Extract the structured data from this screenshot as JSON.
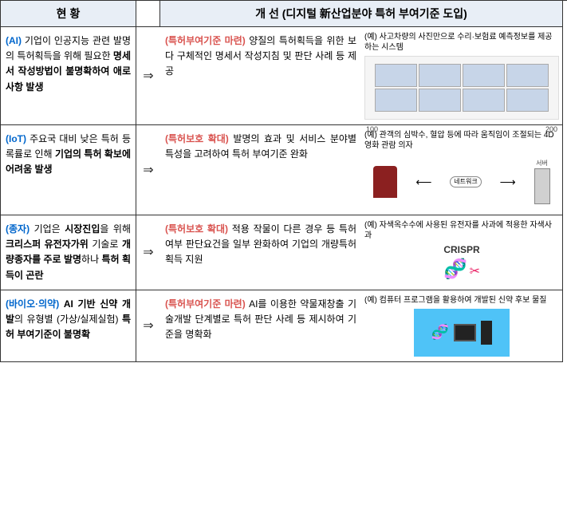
{
  "header": {
    "current": "현 황",
    "improve": "개 선 (디지털 新산업분야 특허 부여기준 도입)"
  },
  "arrow": "⇒",
  "rows": [
    {
      "tag": "(AI)",
      "left_parts": [
        "기업이 인공지능 관련 발명의 특허획득을 위해 필요한 ",
        "명세서 작성방법이 불명확하여 애로사항 발생"
      ],
      "improve_tag": "(특허부여기준 마련)",
      "improve_text": "양질의 특허획득을 위한 보다 구체적인 명세서 작성지침 및 판단 사례 등 제공",
      "ex_head": "(예) 사고차량의 사진만으로 수리·보험료 예측정보를 제공하는 시스템"
    },
    {
      "tag": "(IoT)",
      "left_parts": [
        "주요국 대비 낮은 특허 등록률로 인해 ",
        "기업의 특허 확보에 어려움 발생"
      ],
      "improve_tag": "(특허보호 확대)",
      "improve_text": "발명의 효과 및 서비스 분야별 특성을 고려하여 특허 부여기준 완화",
      "ex_head": "(예) 관객의 심박수, 혈압 등에 따라 움직임이 조절되는 4D영화 관람 의자",
      "n100": "100",
      "n200": "200",
      "netnode": "네트워크",
      "server_label": "서버"
    },
    {
      "tag": "(종자)",
      "left_parts_a": "기업은 ",
      "left_bold_a": "시장진입",
      "left_parts_b": "을 위해 ",
      "left_bold_b": "크리스퍼 유전자가위",
      "left_parts_c": " 기술로 ",
      "left_bold_c": "개량종자를 주로 발명",
      "left_parts_d": "하나 ",
      "left_bold_d": "특허 획득이 곤란",
      "improve_tag": "(특허보호 확대)",
      "improve_text": "적용 작물이 다른 경우 등 특허여부 판단요건을 일부 완화하여 기업의 개량특허 획득 지원",
      "ex_head": "(예) 자색옥수수에 사용된 유전자를 사과에 적용한 자색사과",
      "crispr": "CRISPR"
    },
    {
      "tag": "(바이오·의약)",
      "left_bold_a": "AI 기반 신약 개발",
      "left_parts_a": "의 유형별 (가상/실제실험) ",
      "left_bold_b": "특허 부여기준이 불명확",
      "improve_tag": "(특허부여기준 마련)",
      "improve_text": "AI를 이용한 약물재창출 기술개발 단계별로 특허 판단 사례 등 제시하여 기준을 명확화",
      "ex_head": "(예) 컴퓨터 프로그램을 활용하여 개발된 신약 후보 물질"
    }
  ]
}
